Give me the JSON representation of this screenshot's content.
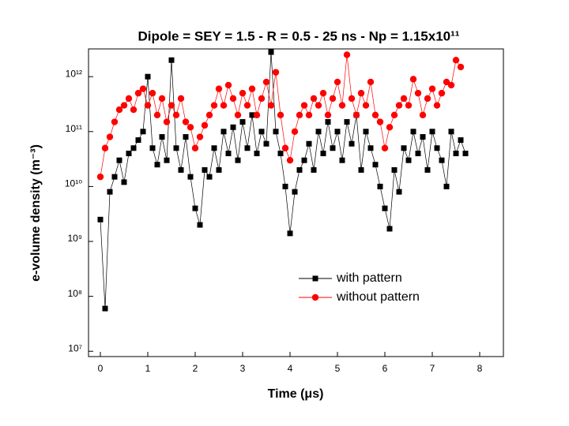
{
  "chart_data": {
    "type": "line",
    "title": "Dipole = SEY = 1.5 - R = 0.5 - 25 ns - Np = 1.15x10¹¹",
    "x_label": "Time (μs)",
    "y_label": "e-volume density (m⁻³)",
    "xlim": [
      -0.25,
      8.5
    ],
    "xticks": [
      0,
      1,
      2,
      3,
      4,
      5,
      6,
      7,
      8
    ],
    "ylim": [
      8000000,
      3200000000000
    ],
    "log_y": true,
    "yticks": [
      {
        "value": 10000000,
        "label": "10⁷"
      },
      {
        "value": 100000000,
        "label": "10⁸"
      },
      {
        "value": 1000000000,
        "label": "10⁹"
      },
      {
        "value": 10000000000,
        "label": "10¹⁰"
      },
      {
        "value": 100000000000,
        "label": "10¹¹"
      },
      {
        "value": 1000000000000,
        "label": "10¹²"
      }
    ],
    "legend": "lower right",
    "series": [
      {
        "name": "with pattern",
        "color": "#000000",
        "marker": "square",
        "x": [
          0.0,
          0.1,
          0.2,
          0.3,
          0.4,
          0.5,
          0.6,
          0.7,
          0.8,
          0.9,
          1.0,
          1.1,
          1.2,
          1.3,
          1.4,
          1.5,
          1.6,
          1.7,
          1.8,
          1.9,
          2.0,
          2.1,
          2.2,
          2.3,
          2.4,
          2.5,
          2.6,
          2.7,
          2.8,
          2.9,
          3.0,
          3.1,
          3.2,
          3.3,
          3.4,
          3.5,
          3.6,
          3.7,
          3.8,
          3.9,
          4.0,
          4.1,
          4.2,
          4.3,
          4.4,
          4.5,
          4.6,
          4.7,
          4.8,
          4.9,
          5.0,
          5.1,
          5.2,
          5.3,
          5.4,
          5.5,
          5.6,
          5.7,
          5.8,
          5.9,
          6.0,
          6.1,
          6.2,
          6.3,
          6.4,
          6.5,
          6.6,
          6.7,
          6.8,
          6.9,
          7.0,
          7.1,
          7.2,
          7.3,
          7.4,
          7.5,
          7.6,
          7.7
        ],
        "values": [
          2500000000.0,
          60000000.0,
          8000000000.0,
          15000000000.0,
          30000000000.0,
          12000000000.0,
          40000000000.0,
          50000000000.0,
          70000000000.0,
          100000000000.0,
          1000000000000.0,
          50000000000.0,
          25000000000.0,
          80000000000.0,
          30000000000.0,
          2000000000000.0,
          50000000000.0,
          20000000000.0,
          80000000000.0,
          15000000000.0,
          4000000000.0,
          2000000000.0,
          20000000000.0,
          15000000000.0,
          50000000000.0,
          20000000000.0,
          100000000000.0,
          40000000000.0,
          120000000000.0,
          30000000000.0,
          150000000000.0,
          50000000000.0,
          200000000000.0,
          40000000000.0,
          100000000000.0,
          60000000000.0,
          2800000000000.0,
          100000000000.0,
          40000000000.0,
          10000000000.0,
          1400000000.0,
          8000000000.0,
          20000000000.0,
          30000000000.0,
          60000000000.0,
          20000000000.0,
          100000000000.0,
          40000000000.0,
          150000000000.0,
          50000000000.0,
          100000000000.0,
          30000000000.0,
          150000000000.0,
          60000000000.0,
          200000000000.0,
          20000000000.0,
          100000000000.0,
          50000000000.0,
          25000000000.0,
          10000000000.0,
          4000000000.0,
          1700000000.0,
          20000000000.0,
          8000000000.0,
          50000000000.0,
          30000000000.0,
          100000000000.0,
          40000000000.0,
          80000000000.0,
          20000000000.0,
          100000000000.0,
          50000000000.0,
          30000000000.0,
          10000000000.0,
          100000000000.0,
          40000000000.0,
          70000000000.0,
          40000000000.0
        ]
      },
      {
        "name": "without pattern",
        "color": "#ff0000",
        "marker": "circle",
        "x": [
          0.0,
          0.1,
          0.2,
          0.3,
          0.4,
          0.5,
          0.6,
          0.7,
          0.8,
          0.9,
          1.0,
          1.1,
          1.2,
          1.3,
          1.4,
          1.5,
          1.6,
          1.7,
          1.8,
          1.9,
          2.0,
          2.1,
          2.2,
          2.3,
          2.4,
          2.5,
          2.6,
          2.7,
          2.8,
          2.9,
          3.0,
          3.1,
          3.2,
          3.3,
          3.4,
          3.5,
          3.6,
          3.7,
          3.8,
          3.9,
          4.0,
          4.1,
          4.2,
          4.3,
          4.4,
          4.5,
          4.6,
          4.7,
          4.8,
          4.9,
          5.0,
          5.1,
          5.2,
          5.3,
          5.4,
          5.5,
          5.6,
          5.7,
          5.8,
          5.9,
          6.0,
          6.1,
          6.2,
          6.3,
          6.4,
          6.5,
          6.6,
          6.7,
          6.8,
          6.9,
          7.0,
          7.1,
          7.2,
          7.3,
          7.4,
          7.5,
          7.6
        ],
        "values": [
          15000000000.0,
          50000000000.0,
          80000000000.0,
          150000000000.0,
          250000000000.0,
          300000000000.0,
          400000000000.0,
          250000000000.0,
          500000000000.0,
          600000000000.0,
          300000000000.0,
          500000000000.0,
          200000000000.0,
          400000000000.0,
          150000000000.0,
          300000000000.0,
          200000000000.0,
          400000000000.0,
          150000000000.0,
          120000000000.0,
          50000000000.0,
          80000000000.0,
          130000000000.0,
          200000000000.0,
          300000000000.0,
          600000000000.0,
          300000000000.0,
          700000000000.0,
          400000000000.0,
          200000000000.0,
          500000000000.0,
          300000000000.0,
          600000000000.0,
          200000000000.0,
          400000000000.0,
          800000000000.0,
          300000000000.0,
          1200000000000.0,
          200000000000.0,
          50000000000.0,
          30000000000.0,
          100000000000.0,
          200000000000.0,
          300000000000.0,
          200000000000.0,
          400000000000.0,
          300000000000.0,
          500000000000.0,
          200000000000.0,
          400000000000.0,
          800000000000.0,
          300000000000.0,
          2500000000000.0,
          400000000000.0,
          200000000000.0,
          500000000000.0,
          300000000000.0,
          800000000000.0,
          200000000000.0,
          150000000000.0,
          50000000000.0,
          120000000000.0,
          200000000000.0,
          300000000000.0,
          400000000000.0,
          300000000000.0,
          900000000000.0,
          500000000000.0,
          200000000000.0,
          400000000000.0,
          600000000000.0,
          300000000000.0,
          500000000000.0,
          800000000000.0,
          700000000000.0,
          2000000000000.0,
          1500000000000.0
        ]
      }
    ]
  }
}
